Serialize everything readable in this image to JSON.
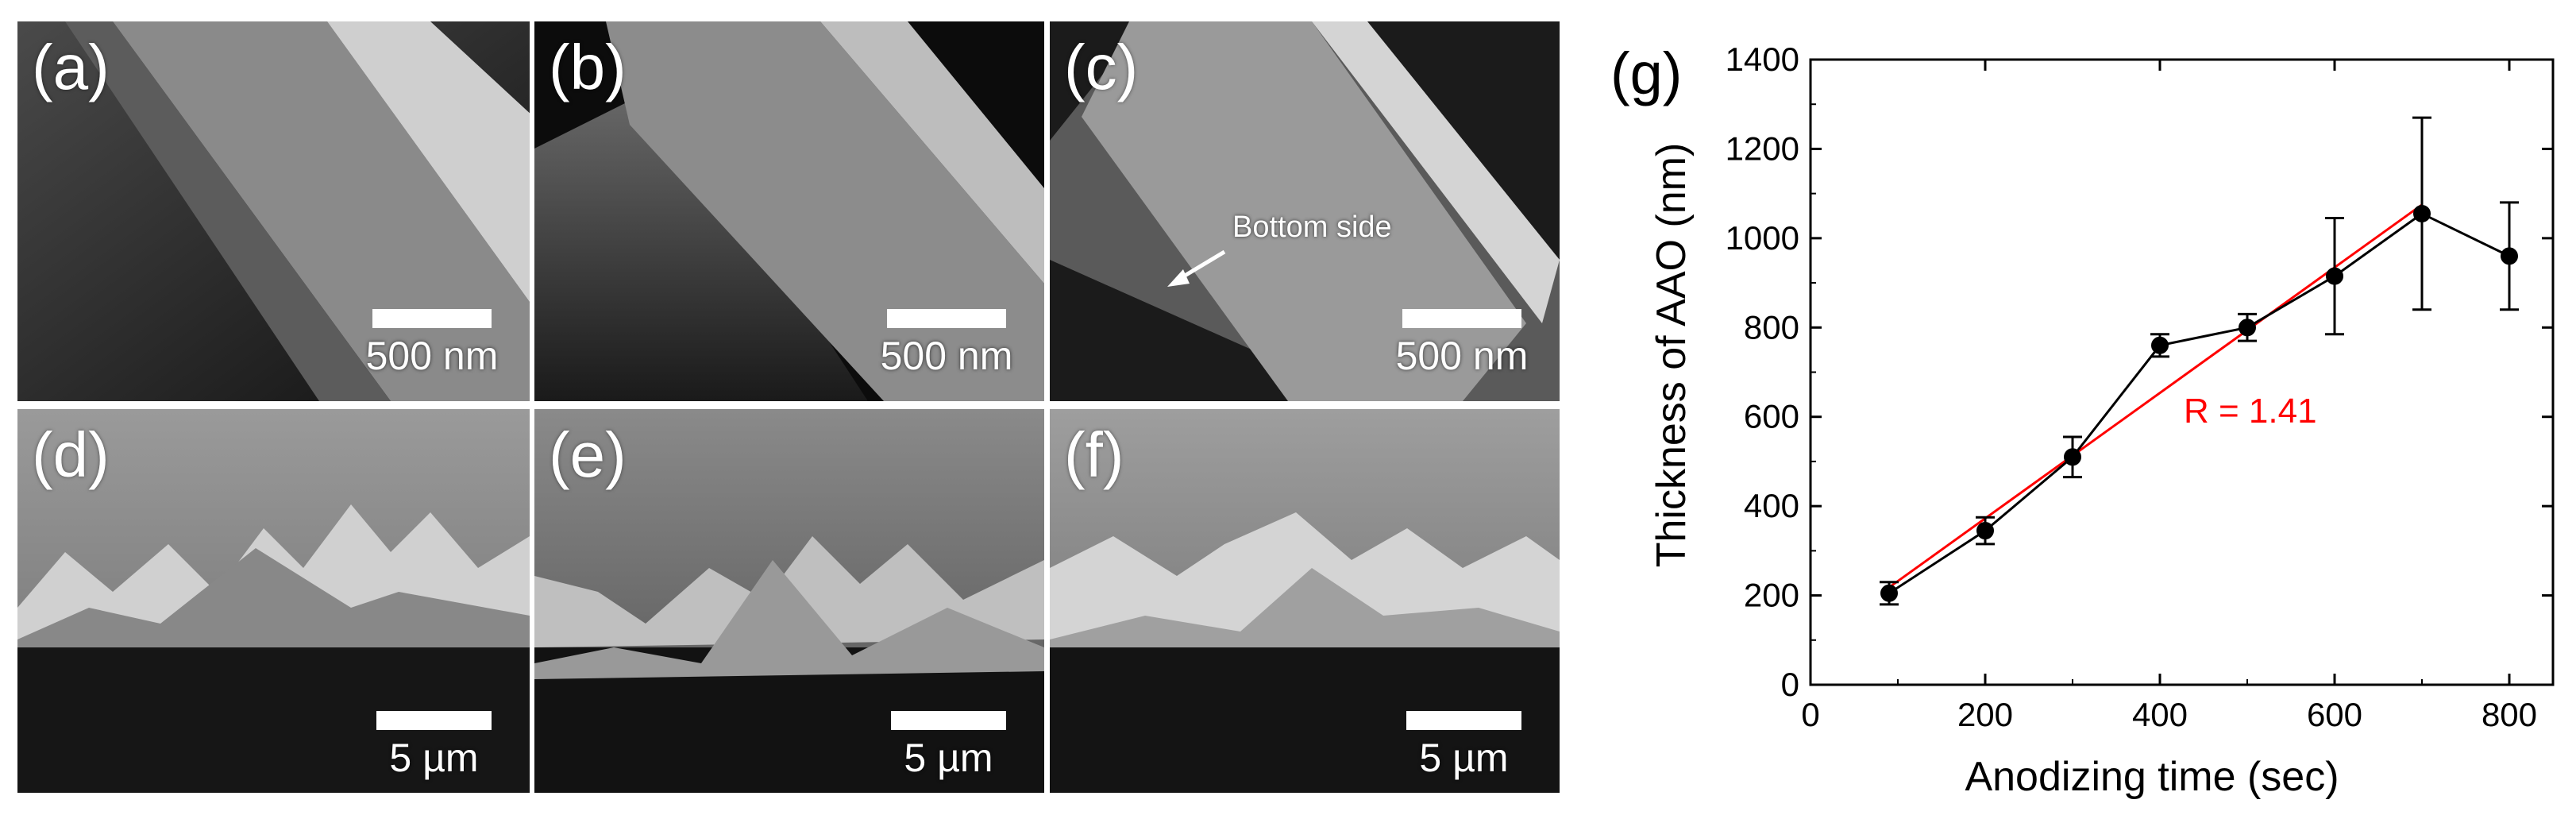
{
  "panels": [
    {
      "label": "(a)",
      "scale": "500 nm"
    },
    {
      "label": "(b)",
      "scale": "500 nm"
    },
    {
      "label": "(c)",
      "scale": "500 nm",
      "annotation": "Bottom side"
    },
    {
      "label": "(d)",
      "scale": "5 µm"
    },
    {
      "label": "(e)",
      "scale": "5 µm"
    },
    {
      "label": "(f)",
      "scale": "5 µm"
    }
  ],
  "colors": {
    "data": "#000000",
    "fit": "#ff0000"
  },
  "chart_data": {
    "type": "line",
    "panel_label": "(g)",
    "xlabel": "Anodizing time (sec)",
    "ylabel": "Thickness of AAO (nm)",
    "xlim": [
      0,
      850
    ],
    "ylim": [
      0,
      1400
    ],
    "xticks": [
      0,
      200,
      400,
      600,
      800
    ],
    "yticks": [
      0,
      200,
      400,
      600,
      800,
      1000,
      1200,
      1400
    ],
    "series": [
      {
        "x": [
          90,
          200,
          300,
          400,
          500,
          600,
          700,
          800
        ],
        "y": [
          205,
          345,
          510,
          760,
          800,
          915,
          1055,
          960
        ],
        "err": [
          25,
          30,
          45,
          25,
          30,
          130,
          215,
          120
        ]
      }
    ],
    "fit": {
      "x": [
        90,
        700
      ],
      "y": [
        218,
        1075
      ],
      "label": "R = 1.41"
    }
  }
}
